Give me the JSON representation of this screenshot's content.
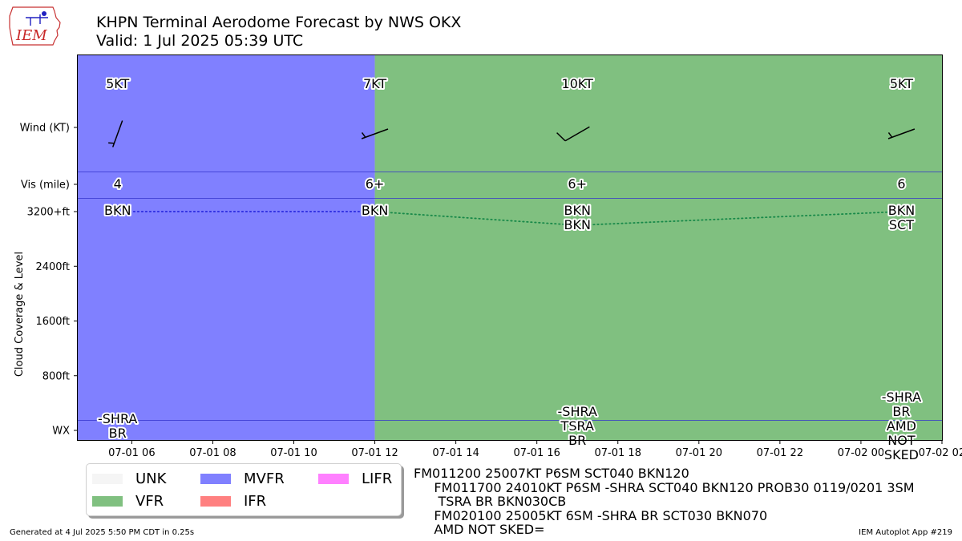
{
  "header": {
    "title": "KHPN Terminal Aerodome Forecast by NWS OKX",
    "valid": "Valid: 1 Jul 2025 05:39 UTC",
    "logo_text": "IEM"
  },
  "chart_data": {
    "type": "timeline",
    "x_range": [
      "2025-07-01 04:40",
      "2025-07-02 02:00"
    ],
    "x_ticks": [
      {
        "t": "2025-07-01 06:00",
        "label": "07-01 06"
      },
      {
        "t": "2025-07-01 08:00",
        "label": "07-01 08"
      },
      {
        "t": "2025-07-01 10:00",
        "label": "07-01 10"
      },
      {
        "t": "2025-07-01 12:00",
        "label": "07-01 12"
      },
      {
        "t": "2025-07-01 14:00",
        "label": "07-01 14"
      },
      {
        "t": "2025-07-01 16:00",
        "label": "07-01 16"
      },
      {
        "t": "2025-07-01 18:00",
        "label": "07-01 18"
      },
      {
        "t": "2025-07-01 20:00",
        "label": "07-01 20"
      },
      {
        "t": "2025-07-01 22:00",
        "label": "07-01 22"
      },
      {
        "t": "2025-07-02 00:00",
        "label": "07-02 00"
      },
      {
        "t": "2025-07-02 02:00",
        "label": "07-02 02"
      }
    ],
    "ylabel": "Cloud Coverage & Level",
    "row_labels": {
      "wind": "Wind (KT)",
      "vis": "Vis (mile)",
      "wx": "WX"
    },
    "level_ticks": [
      {
        "ft": 800,
        "label": "800ft"
      },
      {
        "ft": 1600,
        "label": "1600ft"
      },
      {
        "ft": 2400,
        "label": "2400ft"
      },
      {
        "ft": 3200,
        "label": "3200+ft"
      }
    ],
    "category_spans": [
      {
        "start": "2025-07-01 04:40",
        "end": "2025-07-01 12:00",
        "category": "MVFR"
      },
      {
        "start": "2025-07-01 12:00",
        "end": "2025-07-02 02:00",
        "category": "VFR"
      }
    ],
    "periods": [
      {
        "t": "2025-07-01 05:39",
        "wind_dir": 200,
        "wind_kt": 5,
        "wind_label": "5KT",
        "vis": "4",
        "wx": [
          "-SHRA",
          "BR"
        ],
        "clouds": [
          {
            "cover": "BKN",
            "ft": 3200
          }
        ],
        "line_level_ft": 3200
      },
      {
        "t": "2025-07-01 12:00",
        "wind_dir": 250,
        "wind_kt": 7,
        "wind_label": "7KT",
        "vis": "6+",
        "wx": [],
        "clouds": [
          {
            "cover": "BKN",
            "ft": 3200
          }
        ],
        "line_level_ft": 3200
      },
      {
        "t": "2025-07-01 17:00",
        "wind_dir": 240,
        "wind_kt": 10,
        "wind_label": "10KT",
        "vis": "6+",
        "wx": [
          "-SHRA",
          "TSRA",
          "BR"
        ],
        "clouds": [
          {
            "cover": "BKN",
            "ft": 3200
          },
          {
            "cover": "BKN",
            "ft": 3000
          }
        ],
        "line_level_ft": 3000
      },
      {
        "t": "2025-07-02 01:00",
        "wind_dir": 250,
        "wind_kt": 5,
        "wind_label": "5KT",
        "vis": "6",
        "wx": [
          "-SHRA",
          "BR",
          "AMD",
          "NOT",
          "SKED"
        ],
        "clouds": [
          {
            "cover": "BKN",
            "ft": 3200
          },
          {
            "cover": "SCT",
            "ft": 3000
          }
        ],
        "line_level_ft": 3200
      }
    ]
  },
  "legend": {
    "items": [
      {
        "label": "UNK",
        "color": "#f5f5f5"
      },
      {
        "label": "VFR",
        "color": "#80c080"
      },
      {
        "label": "MVFR",
        "color": "#8080ff"
      },
      {
        "label": "IFR",
        "color": "#ff8080"
      },
      {
        "label": "LIFR",
        "color": "#ff80ff"
      }
    ]
  },
  "colors": {
    "MVFR": "#8080ff",
    "VFR": "#80c080",
    "divider": "#3333cc",
    "mvfr_line": "#2a2ae0",
    "vfr_line": "#1a8a4a"
  },
  "taf_text": "FM011200 25007KT P6SM SCT040 BKN120\n     FM011700 24010KT P6SM -SHRA SCT040 BKN120 PROB30 0119/0201 3SM\n      TSRA BR BKN030CB\n     FM020100 25005KT 6SM -SHRA BR SCT030 BKN070\n     AMD NOT SKED=",
  "footer": {
    "generated": "Generated at 4 Jul 2025 5:50 PM CDT in 0.25s",
    "app": "IEM Autoplot App #219"
  }
}
